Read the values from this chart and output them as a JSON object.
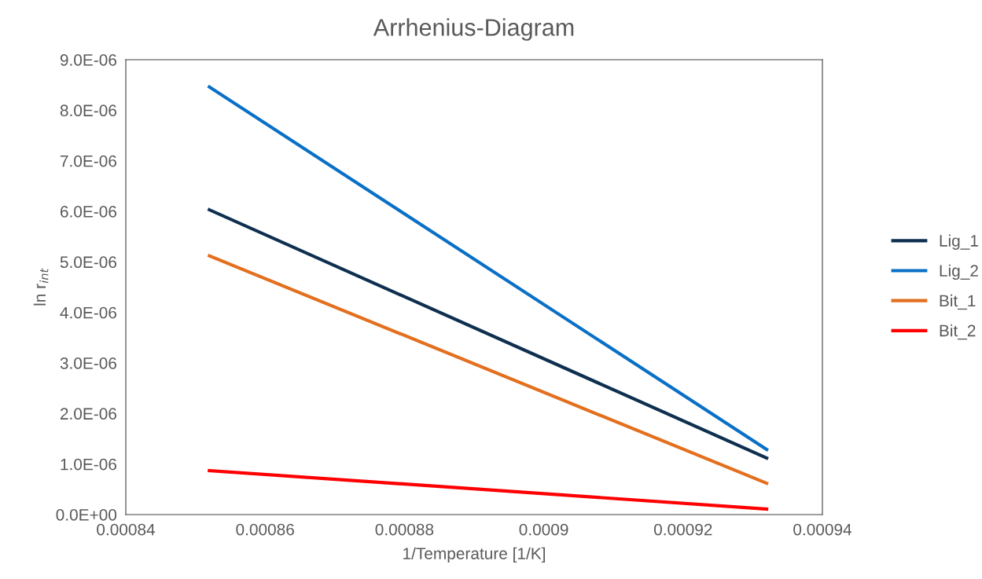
{
  "chart_data": {
    "type": "line",
    "title": "Arrhenius-Diagram",
    "xlabel": "1/Temperature [1/K]",
    "ylabel": "ln r$_{int}$",
    "x": [
      0.000852,
      0.000932
    ],
    "series": [
      {
        "name": "Lig_1",
        "color": "#0e2f4f",
        "values": [
          6.03e-06,
          1.12e-06
        ]
      },
      {
        "name": "Lig_2",
        "color": "#0a70c6",
        "values": [
          8.46e-06,
          1.29e-06
        ]
      },
      {
        "name": "Bit_1",
        "color": "#e2701f",
        "values": [
          5.12e-06,
          6.2e-07
        ]
      },
      {
        "name": "Bit_2",
        "color": "#ff0000",
        "values": [
          8.7e-07,
          1.1e-07
        ]
      }
    ],
    "xlim": [
      0.00084,
      0.00094
    ],
    "xticks": [
      {
        "value": 0.00084,
        "label": "0.00084"
      },
      {
        "value": 0.00086,
        "label": "0.00086"
      },
      {
        "value": 0.00088,
        "label": "0.00088"
      },
      {
        "value": 0.0009,
        "label": "0.0009"
      },
      {
        "value": 0.00092,
        "label": "0.00092"
      },
      {
        "value": 0.00094,
        "label": "0.00094"
      }
    ],
    "ylim": [
      0,
      9e-06
    ],
    "yticks": [
      {
        "value": 0,
        "label": "0.0E+00"
      },
      {
        "value": 1e-06,
        "label": "1.0E-06"
      },
      {
        "value": 2e-06,
        "label": "2.0E-06"
      },
      {
        "value": 3e-06,
        "label": "3.0E-06"
      },
      {
        "value": 4e-06,
        "label": "4.0E-06"
      },
      {
        "value": 5e-06,
        "label": "5.0E-06"
      },
      {
        "value": 6e-06,
        "label": "6.0E-06"
      },
      {
        "value": 7e-06,
        "label": "7.0E-06"
      },
      {
        "value": 8e-06,
        "label": "8.0E-06"
      },
      {
        "value": 9e-06,
        "label": "9.0E-06"
      }
    ],
    "grid": false,
    "legend": "right",
    "marker": "none",
    "line_style": "solid"
  }
}
